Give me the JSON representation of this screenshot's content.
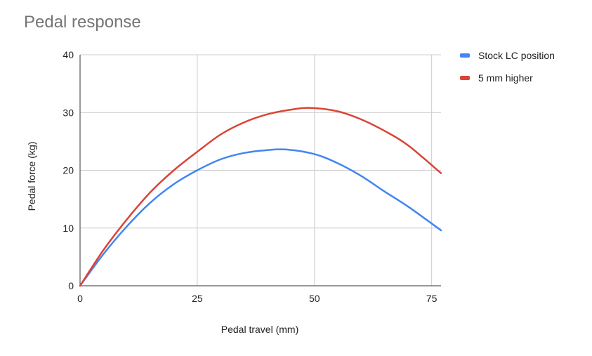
{
  "chart_data": {
    "type": "line",
    "title": "Pedal response",
    "xlabel": "Pedal travel (mm)",
    "ylabel": "Pedal force (kg)",
    "xlim": [
      0,
      77
    ],
    "ylim": [
      0,
      40
    ],
    "x_ticks": [
      "0",
      "25",
      "50",
      "75"
    ],
    "y_ticks": [
      "0",
      "10",
      "20",
      "30",
      "40"
    ],
    "grid": true,
    "legend": "right",
    "series": [
      {
        "name": "Stock LC position",
        "color": "#4285f4",
        "x": [
          0,
          5,
          10,
          15,
          20,
          25,
          30,
          35,
          40,
          44,
          50,
          55,
          60,
          65,
          70,
          77
        ],
        "y": [
          0,
          5.5,
          10.3,
          14.4,
          17.6,
          20.0,
          21.9,
          23.0,
          23.5,
          23.6,
          22.8,
          21.2,
          19.0,
          16.3,
          13.7,
          9.6
        ]
      },
      {
        "name": "5 mm higher",
        "color": "#db4437",
        "x": [
          0,
          5,
          10,
          15,
          20,
          25,
          30,
          35,
          40,
          45,
          49,
          55,
          60,
          65,
          70,
          77
        ],
        "y": [
          0,
          6.2,
          11.5,
          16.2,
          20.0,
          23.2,
          26.2,
          28.3,
          29.7,
          30.5,
          30.8,
          30.2,
          28.8,
          26.8,
          24.3,
          19.5
        ]
      }
    ]
  }
}
